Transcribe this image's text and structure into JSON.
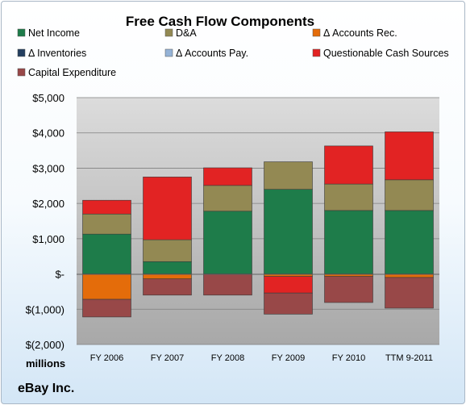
{
  "chart_data": {
    "type": "bar",
    "stacked": true,
    "title": "Free Cash Flow Components",
    "ylabel": "millions",
    "company": "eBay Inc.",
    "categories": [
      "FY 2006",
      "FY 2007",
      "FY 2008",
      "FY 2009",
      "FY 2010",
      "TTM 9-2011"
    ],
    "ylim": [
      -2000,
      5000
    ],
    "yticks": [
      5000,
      4000,
      3000,
      2000,
      1000,
      0,
      -1000,
      -2000
    ],
    "ytick_labels": [
      "$5,000",
      "$4,000",
      "$3,000",
      "$2,000",
      "$1,000",
      "$-",
      "$(1,000)",
      "$(2,000)"
    ],
    "grid": true,
    "legend_position": "top",
    "series": [
      {
        "name": "Net Income",
        "color": "#1e7c4a",
        "values": [
          1130,
          350,
          1780,
          2400,
          1800,
          1800
        ]
      },
      {
        "name": "D&A",
        "color": "#938953",
        "values": [
          570,
          620,
          730,
          780,
          750,
          870
        ]
      },
      {
        "name": "Δ Accounts Rec.",
        "color": "#e46c0a",
        "values": [
          -720,
          -140,
          0,
          -70,
          -70,
          -100
        ]
      },
      {
        "name": "Δ Inventories",
        "color": "#243f60",
        "values": [
          0,
          0,
          0,
          0,
          0,
          0
        ]
      },
      {
        "name": "Δ Accounts Pay.",
        "color": "#95b3d7",
        "values": [
          0,
          0,
          0,
          0,
          0,
          0
        ]
      },
      {
        "name": "Questionable Cash Sources",
        "color": "#e22323",
        "values": [
          390,
          1780,
          500,
          -470,
          1080,
          1360
        ]
      },
      {
        "name": "Capital Expenditure",
        "color": "#984848",
        "values": [
          -500,
          -460,
          -600,
          -600,
          -740,
          -870
        ]
      }
    ]
  }
}
